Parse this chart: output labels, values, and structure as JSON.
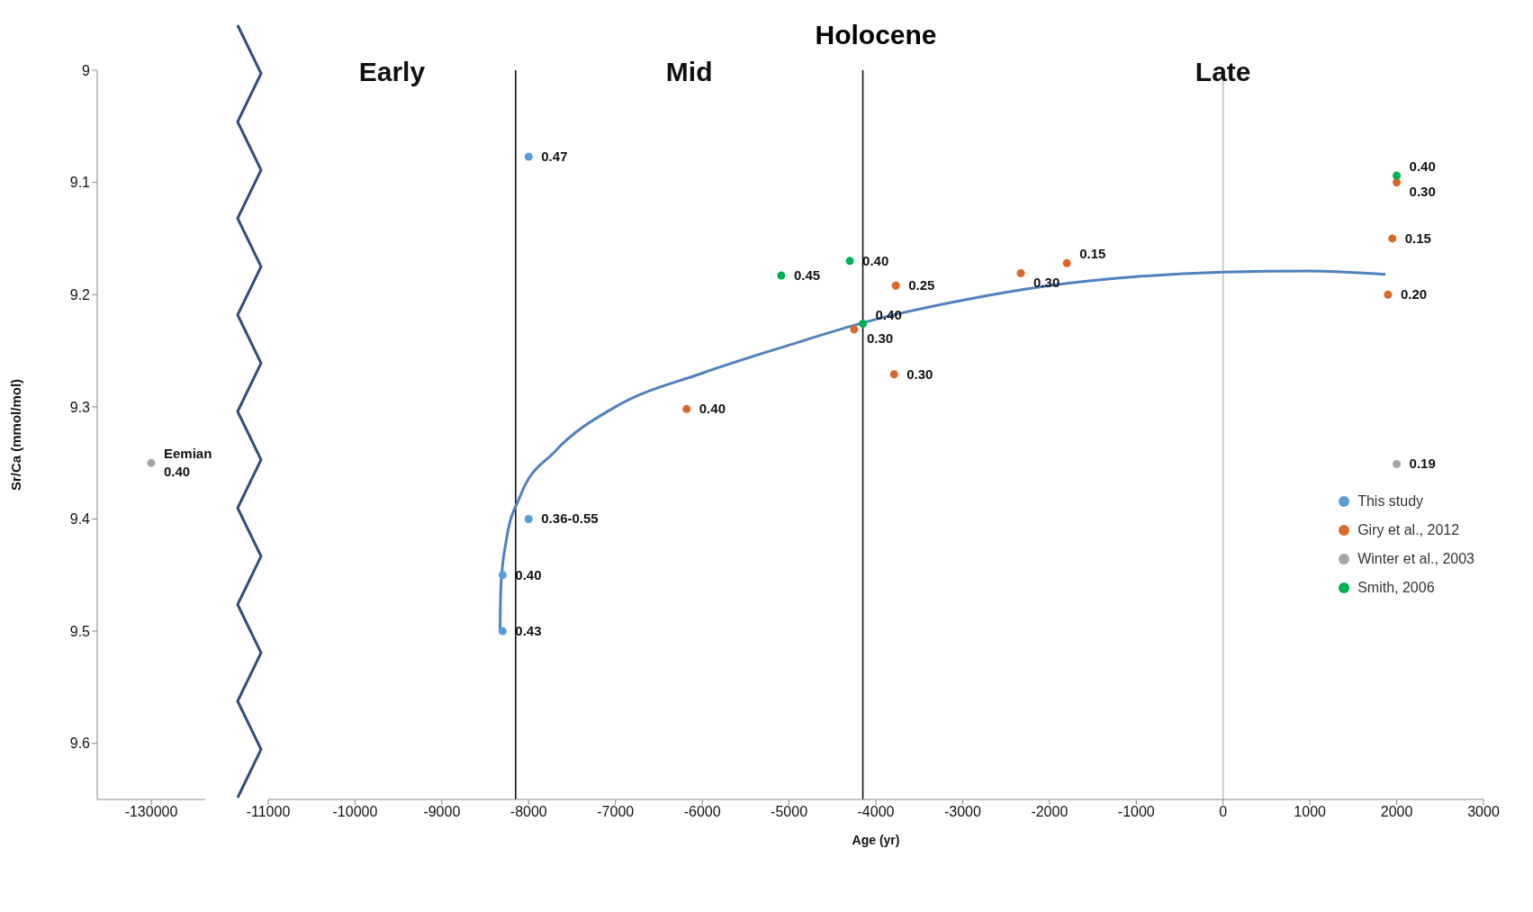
{
  "chart_data": [
    {
      "type": "scatter",
      "categories": [
        "-130000"
      ],
      "ylabel": "Sr/Ca (mmol/mol)",
      "ylim": [
        9.65,
        9
      ],
      "yticks": [
        9,
        9.1,
        9.2,
        9.3,
        9.4,
        9.5,
        9.6
      ],
      "series": [
        {
          "color": "#a5a5a5",
          "values": [
            9.35
          ]
        }
      ],
      "annotations": [
        {
          "text": "Eemian",
          "x": "-130000",
          "y": 9.35
        },
        {
          "text": "0.40",
          "x": "-130000",
          "y": 9.35
        }
      ]
    },
    {
      "type": "scatter",
      "title": "Holocene",
      "xlabel": "Age (yr)",
      "xlim": [
        -11000,
        3000
      ],
      "xticks": [
        -11000,
        -10000,
        -9000,
        -8000,
        -7000,
        -6000,
        -5000,
        -4000,
        -3000,
        -2000,
        -1000,
        0,
        1000,
        2000,
        3000
      ],
      "ylim": [
        9.65,
        9
      ],
      "tick_labels": "x",
      "legend": "bottom right",
      "ref_lines": [
        {
          "axis": "x",
          "value": -8150,
          "color": "#000000"
        },
        {
          "axis": "x",
          "value": -4150,
          "color": "#000000"
        },
        {
          "axis": "x",
          "value": 0,
          "color": "#bfbfbf"
        }
      ],
      "series": [
        {
          "type": "line",
          "color": "#4f81bd",
          "x": [
            -8330,
            -8320,
            -8260,
            -8100,
            -7700,
            -7000,
            -6000,
            -5000,
            -4000,
            -3000,
            -2000,
            -1000,
            0,
            1000,
            1870
          ],
          "values": [
            9.5,
            9.46,
            9.42,
            9.38,
            9.34,
            9.3,
            9.27,
            9.245,
            9.222,
            9.205,
            9.192,
            9.184,
            9.18,
            9.179,
            9.182
          ]
        },
        {
          "color": "#5b9bd5",
          "x": [
            -8300,
            -8300,
            -8000
          ],
          "values": [
            9.5,
            9.45,
            9.4
          ],
          "name": "This study"
        },
        {
          "color": "#5b9bd5",
          "x": [
            -8000
          ],
          "values": [
            9.077
          ]
        },
        {
          "color": "#d9692b",
          "x": [
            2000,
            1950,
            1900,
            -1800,
            -2330,
            -3770,
            -4250,
            -3790,
            -6180
          ],
          "values": [
            9.1,
            9.15,
            9.2,
            9.172,
            9.181,
            9.192,
            9.231,
            9.271,
            9.302
          ],
          "name": "Giry et al., 2012"
        },
        {
          "color": "#a5a5a5",
          "x": [
            2000
          ],
          "values": [
            9.351
          ],
          "name": "Winter et al., 2003"
        },
        {
          "color": "#00b050",
          "x": [
            2000,
            -4300,
            -5090,
            -4150
          ],
          "values": [
            9.094,
            9.17,
            9.183,
            9.226
          ],
          "name": "Smith, 2006"
        }
      ],
      "annotations": [
        "Early",
        "Mid",
        {
          "text": "Late",
          "x": 0
        },
        {
          "text": "0.43",
          "x": -8300,
          "y": 9.5
        },
        {
          "text": "0.40",
          "x": -8300,
          "y": 9.45
        },
        {
          "text": "0.36-0.55",
          "x": -8000,
          "y": 9.4
        },
        {
          "text": "0.47",
          "x": -8000,
          "y": 9.077
        },
        {
          "text": "0.30",
          "x": 2000,
          "y": 9.1
        },
        {
          "text": "0.15",
          "x": 1950,
          "y": 9.15
        },
        {
          "text": "0.20",
          "x": 1900,
          "y": 9.2
        },
        {
          "text": "0.15",
          "x": -1800,
          "y": 9.172
        },
        {
          "text": "0.30",
          "x": -2330,
          "y": 9.181
        },
        {
          "text": "0.25",
          "x": -3770,
          "y": 9.192
        },
        {
          "text": "0.30",
          "x": -4250,
          "y": 9.231
        },
        {
          "text": "0.30",
          "x": -3790,
          "y": 9.271
        },
        {
          "text": "0.40",
          "x": -6180,
          "y": 9.302
        },
        {
          "text": "0.19",
          "x": 2000,
          "y": 9.351
        },
        {
          "text": "0.40",
          "x": 2000,
          "y": 9.094
        },
        {
          "text": "0.40",
          "x": -4300,
          "y": 9.17
        },
        {
          "text": "0.45",
          "x": -5090,
          "y": 9.183
        },
        {
          "text": "0.40",
          "x": -4150,
          "y": 9.226
        }
      ]
    }
  ]
}
